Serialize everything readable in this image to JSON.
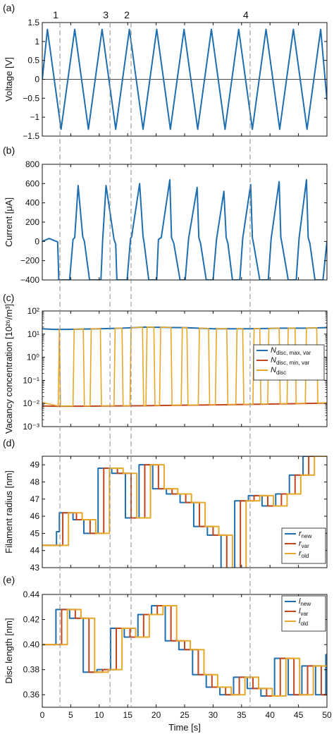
{
  "figure": {
    "xlabel": "Time [s]",
    "ylabel_unit_note": ""
  },
  "colors": {
    "blue": "#1f6fb0",
    "red": "#c2461e",
    "orange": "#e6a82a",
    "axis": "#111111",
    "dash": "#8c8c8c"
  },
  "markers": [
    {
      "label": "1",
      "t": 3.1
    },
    {
      "label": "2",
      "t": 15.6
    },
    {
      "label": "3",
      "t": 11.9
    },
    {
      "label": "4",
      "t": 36.5
    }
  ],
  "chart_data": [
    {
      "id": "a",
      "panel_label": "(a)",
      "type": "line",
      "ylabel": "Voltage [V]",
      "xlim": [
        0,
        50
      ],
      "ylim": [
        -1.5,
        1.5
      ],
      "yscale": "linear",
      "xticks": [],
      "yticks": [
        -1.5,
        -1,
        -0.5,
        0,
        0.5,
        1,
        1.5
      ],
      "ytick_labels": [
        "−1.5",
        "−1",
        "−0.5",
        "0",
        "0.5",
        "1",
        "1.5"
      ],
      "zero_line": true,
      "series": [
        {
          "color_key": "blue",
          "x": [
            0,
            0.9,
            3.3,
            5.7,
            8.1,
            10.5,
            12.9,
            15.3,
            17.7,
            20.1,
            22.5,
            24.9,
            27.3,
            29.7,
            32.1,
            34.5,
            36.9,
            39.3,
            41.7,
            44.1,
            46.5,
            48.9,
            50
          ],
          "y": [
            0,
            1.32,
            -1.32,
            1.32,
            -1.32,
            1.32,
            -1.32,
            1.32,
            -1.32,
            1.32,
            -1.32,
            1.32,
            -1.32,
            1.32,
            -1.32,
            1.32,
            -1.32,
            1.32,
            -1.32,
            1.32,
            -1.32,
            1.32,
            -0.55
          ]
        }
      ]
    },
    {
      "id": "b",
      "panel_label": "(b)",
      "type": "line",
      "ylabel": "Current [μA]",
      "xlim": [
        0,
        50
      ],
      "ylim": [
        -400,
        800
      ],
      "yscale": "linear",
      "xticks": [],
      "yticks": [
        -400,
        -200,
        0,
        200,
        400,
        600,
        800
      ],
      "ytick_labels": [
        "−400",
        "−200",
        "0",
        "200",
        "400",
        "600",
        "800"
      ],
      "series": [
        {
          "color_key": "blue",
          "x": [
            0,
            1.2,
            2.7,
            2.9,
            3.5,
            4.8,
            5.4,
            5.7,
            6.3,
            7.1,
            7.4,
            8.3,
            9.6,
            10.3,
            10.6,
            11.2,
            12.6,
            12.9,
            13.1,
            13.9,
            14.9,
            15.5,
            15.7,
            17.1,
            17.7,
            17.9,
            18.7,
            19.6,
            20.1,
            20.4,
            20.9,
            22.4,
            22.7,
            23.1,
            24.2,
            24.9,
            25.1,
            25.7,
            27.2,
            27.5,
            27.8,
            28.8,
            29.7,
            30.0,
            30.6,
            31.9,
            32.3,
            32.6,
            33.4,
            34.4,
            34.7,
            35.2,
            36.6,
            36.9,
            37.1,
            38.2,
            39.4,
            39.7,
            40.2,
            41.6,
            41.9,
            42.1,
            43.2,
            44.2,
            44.6,
            45.1,
            46.4,
            46.7,
            47.0,
            47.9,
            48.9,
            49.3,
            50
          ],
          "y": [
            0,
            30,
            -5,
            -400,
            -400,
            -400,
            20,
            40,
            580,
            50,
            0,
            -400,
            -400,
            -400,
            10,
            580,
            20,
            -30,
            -400,
            -400,
            -400,
            30,
            50,
            600,
            50,
            -20,
            -400,
            -400,
            -400,
            20,
            40,
            640,
            40,
            -20,
            -400,
            -400,
            -400,
            30,
            560,
            40,
            -20,
            -400,
            -400,
            -400,
            20,
            520,
            40,
            -20,
            -400,
            -400,
            -400,
            30,
            590,
            40,
            -20,
            -400,
            -400,
            -400,
            30,
            620,
            40,
            -20,
            -400,
            -400,
            -400,
            30,
            640,
            40,
            -20,
            -400,
            -400,
            -400,
            0
          ]
        }
      ]
    },
    {
      "id": "c",
      "panel_label": "(c)",
      "type": "line",
      "ylabel": "Vacancy concentration [10²⁶/m³]",
      "xlim": [
        0,
        50
      ],
      "ylim": [
        0.001,
        100
      ],
      "yscale": "log",
      "xticks": [],
      "yticks": [
        0.001,
        0.01,
        0.1,
        1,
        10,
        100
      ],
      "ytick_labels": [
        "10⁻³",
        "10⁻²",
        "10⁻¹",
        "10⁰",
        "10¹",
        "10²"
      ],
      "legend": {
        "position": "right-middle",
        "entries": [
          {
            "color_key": "blue",
            "text": "N",
            "sub": "disc, max, var"
          },
          {
            "color_key": "red",
            "text": "N",
            "sub": "disc, min, var"
          },
          {
            "color_key": "orange",
            "text": "N",
            "sub": "disc"
          }
        ]
      },
      "series": [
        {
          "name": "N disc, max, var",
          "color_key": "blue",
          "x": [
            0,
            2,
            4,
            10,
            14,
            18,
            25,
            30,
            36,
            42,
            46,
            50
          ],
          "y": [
            17,
            16,
            16,
            17,
            18,
            20,
            19,
            17,
            17,
            18,
            18,
            19
          ]
        },
        {
          "name": "N disc, min, var",
          "color_key": "red",
          "x": [
            0,
            3,
            10,
            18,
            25,
            32,
            38,
            44,
            50
          ],
          "y": [
            0.0078,
            0.0076,
            0.0077,
            0.008,
            0.0084,
            0.0088,
            0.0093,
            0.0098,
            0.0104
          ]
        },
        {
          "name": "N disc",
          "color_key": "orange",
          "switch_times": [
            2.8,
            3.0,
            5.4,
            7.2,
            8.4,
            10.2,
            12.6,
            14.0,
            15.4,
            17.6,
            18.2,
            19.6,
            20.6,
            22.6,
            24.4,
            25.4,
            27.4,
            29.2,
            30.4,
            32.4,
            34.0,
            35.2,
            37.0,
            38.2,
            39.6,
            41.6,
            43.0,
            44.4,
            46.2,
            48.2
          ]
        }
      ]
    },
    {
      "id": "d",
      "panel_label": "(d)",
      "type": "step",
      "ylabel": "Filament radius [nm]",
      "xlim": [
        0,
        50
      ],
      "ylim": [
        43,
        49.5
      ],
      "yscale": "linear",
      "xticks": [],
      "yticks": [
        43,
        44,
        45,
        46,
        47,
        48,
        49
      ],
      "ytick_labels": [
        "43",
        "44",
        "45",
        "46",
        "47",
        "48",
        "49"
      ],
      "legend": {
        "position": "bottom-right",
        "entries": [
          {
            "color_key": "blue",
            "text": "r",
            "sub": "new"
          },
          {
            "color_key": "red",
            "text": "r",
            "sub": "var"
          },
          {
            "color_key": "orange",
            "text": "r",
            "sub": "old"
          }
        ]
      },
      "series": [
        {
          "name": "r new",
          "color_key": "blue",
          "x": [
            0,
            2.5,
            3.0,
            5.4,
            7.3,
            9.8,
            12.2,
            14.6,
            17.0,
            19.4,
            21.8,
            24.2,
            26.6,
            29.0,
            31.4,
            33.8,
            36.2,
            38.6,
            41.0,
            43.4,
            45.8,
            50
          ],
          "y": [
            44.3,
            45.1,
            46.2,
            45.8,
            45.0,
            48.8,
            48.5,
            45.9,
            49.0,
            47.6,
            47.3,
            46.8,
            45.4,
            44.9,
            42.9,
            46.9,
            47.2,
            46.6,
            47.3,
            48.4,
            49.5,
            49.5
          ]
        },
        {
          "name": "r var",
          "color_key": "red",
          "x": [
            0,
            3.6,
            6.0,
            8.4,
            10.8,
            13.2,
            15.6,
            18.0,
            20.4,
            22.8,
            25.2,
            27.6,
            30.0,
            32.4,
            34.8,
            37.2,
            39.6,
            42.0,
            44.4,
            46.8,
            50
          ],
          "y": [
            44.3,
            46.2,
            45.8,
            45.0,
            48.8,
            48.5,
            45.9,
            49.0,
            47.6,
            47.3,
            46.8,
            45.4,
            44.9,
            42.9,
            46.9,
            47.2,
            46.6,
            47.3,
            48.4,
            49.5,
            49.5
          ]
        },
        {
          "name": "r old",
          "color_key": "orange",
          "x": [
            0,
            4.6,
            7.0,
            9.4,
            11.8,
            14.2,
            16.6,
            19.0,
            21.4,
            23.8,
            26.2,
            28.6,
            31.0,
            33.4,
            35.8,
            38.2,
            40.6,
            43.0,
            45.4,
            47.8,
            50
          ],
          "y": [
            44.3,
            46.2,
            45.8,
            45.0,
            48.8,
            48.5,
            45.9,
            49.0,
            47.6,
            47.3,
            46.8,
            45.4,
            44.9,
            42.9,
            46.9,
            47.2,
            46.6,
            47.3,
            48.4,
            49.5,
            49.5
          ]
        }
      ]
    },
    {
      "id": "e",
      "panel_label": "(e)",
      "type": "step",
      "ylabel": "Disc length [nm]",
      "xlabel": "Time [s]",
      "xlim": [
        0,
        50
      ],
      "ylim": [
        0.35,
        0.44
      ],
      "yscale": "linear",
      "xticks": [
        0,
        5,
        10,
        15,
        20,
        25,
        30,
        35,
        40,
        45,
        50
      ],
      "yticks": [
        0.36,
        0.38,
        0.4,
        0.42,
        0.44
      ],
      "ytick_labels": [
        "0.36",
        "0.38",
        "0.40",
        "0.42",
        "0.44"
      ],
      "legend": {
        "position": "top-right",
        "entries": [
          {
            "color_key": "blue",
            "text": "l",
            "sub": "new"
          },
          {
            "color_key": "red",
            "text": "l",
            "sub": "var"
          },
          {
            "color_key": "orange",
            "text": "l",
            "sub": "old"
          }
        ]
      },
      "series": [
        {
          "name": "l new",
          "color_key": "blue",
          "x": [
            0,
            2.4,
            4.8,
            7.2,
            9.6,
            12.0,
            14.4,
            16.8,
            19.2,
            21.6,
            24.0,
            26.4,
            28.8,
            31.2,
            33.6,
            36.0,
            38.4,
            40.8,
            43.2,
            45.6,
            48.0,
            49.8,
            50
          ],
          "y": [
            0.4,
            0.428,
            0.421,
            0.378,
            0.38,
            0.413,
            0.406,
            0.424,
            0.431,
            0.403,
            0.396,
            0.376,
            0.366,
            0.36,
            0.374,
            0.365,
            0.359,
            0.389,
            0.36,
            0.383,
            0.36,
            0.392,
            0.392
          ]
        },
        {
          "name": "l var",
          "color_key": "red",
          "x": [
            0,
            3.4,
            5.8,
            8.2,
            10.6,
            13.0,
            15.4,
            17.8,
            20.2,
            22.6,
            25.0,
            27.4,
            29.8,
            32.2,
            34.6,
            37.0,
            39.4,
            41.8,
            44.2,
            46.6,
            49.0,
            50
          ],
          "y": [
            0.4,
            0.428,
            0.421,
            0.378,
            0.38,
            0.413,
            0.406,
            0.424,
            0.431,
            0.403,
            0.396,
            0.376,
            0.366,
            0.36,
            0.374,
            0.365,
            0.359,
            0.389,
            0.36,
            0.383,
            0.36,
            0.36
          ]
        },
        {
          "name": "l old",
          "color_key": "orange",
          "x": [
            0,
            4.4,
            6.8,
            9.2,
            11.6,
            14.0,
            16.4,
            18.8,
            21.2,
            23.6,
            26.0,
            28.4,
            30.8,
            33.2,
            35.6,
            38.0,
            40.4,
            42.8,
            45.2,
            47.6,
            50
          ],
          "y": [
            0.4,
            0.428,
            0.421,
            0.378,
            0.38,
            0.413,
            0.406,
            0.424,
            0.431,
            0.403,
            0.396,
            0.376,
            0.366,
            0.36,
            0.374,
            0.365,
            0.359,
            0.389,
            0.36,
            0.383,
            0.383
          ]
        }
      ]
    }
  ]
}
